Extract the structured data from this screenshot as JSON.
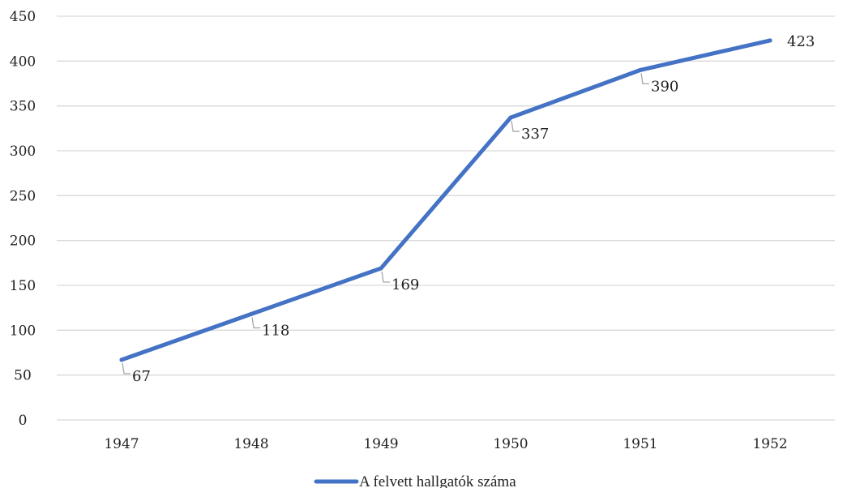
{
  "chart_data": {
    "type": "line",
    "title": "",
    "xlabel": "",
    "ylabel": "",
    "categories": [
      "1947",
      "1948",
      "1949",
      "1950",
      "1951",
      "1952"
    ],
    "series": [
      {
        "name": "A felvett hallgatók száma",
        "values": [
          67,
          118,
          169,
          337,
          390,
          423
        ],
        "color": "#4472C4",
        "data_labels": [
          "67",
          "118",
          "169",
          "337",
          "390",
          "423"
        ]
      }
    ],
    "ylim": [
      0,
      450
    ],
    "y_ticks": [
      "0",
      "50",
      "100",
      "150",
      "200",
      "250",
      "300",
      "350",
      "400",
      "450"
    ],
    "grid": true,
    "legend_position": "bottom"
  }
}
